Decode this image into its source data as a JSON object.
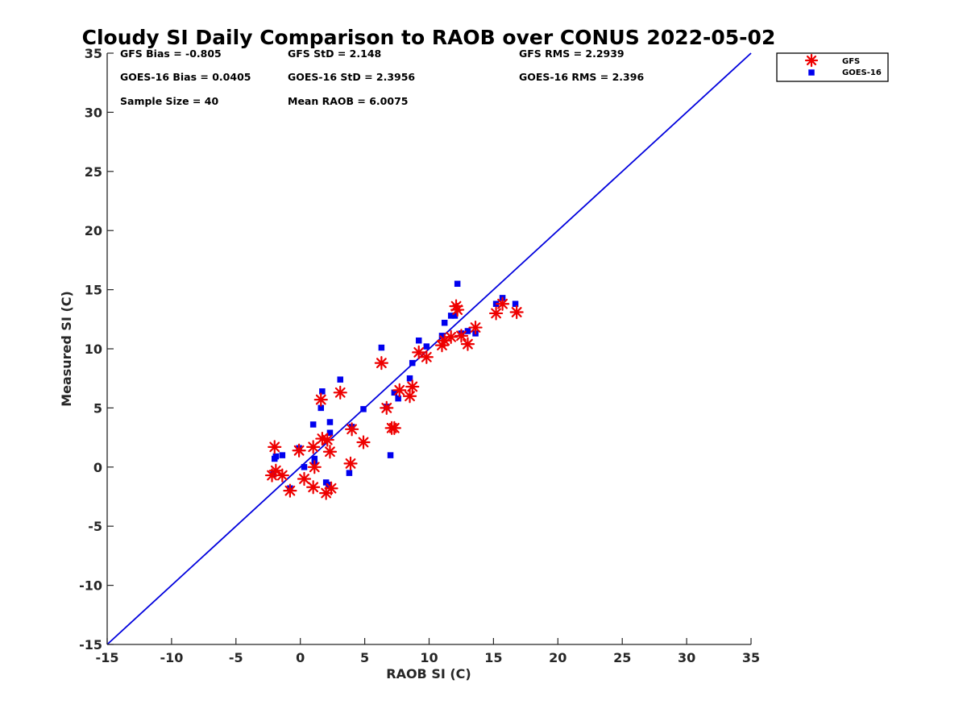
{
  "chart_data": {
    "type": "scatter",
    "title": "Cloudy SI Daily Comparison to RAOB over CONUS 2022-05-02",
    "xlabel": "RAOB SI (C)",
    "ylabel": "Measured SI (C)",
    "xlim": [
      -15,
      35
    ],
    "ylim": [
      -15,
      35
    ],
    "xticks": [
      -15,
      -10,
      -5,
      0,
      5,
      10,
      15,
      20,
      25,
      30,
      35
    ],
    "yticks": [
      -15,
      -10,
      -5,
      0,
      5,
      10,
      15,
      20,
      25,
      30,
      35
    ],
    "grid": false,
    "legend_position": "outside-top-right",
    "reference_line": {
      "x": [
        -15,
        35
      ],
      "y": [
        -15,
        35
      ],
      "color": "#0000dd"
    },
    "stats": [
      "GFS Bias = -0.805",
      "GFS StD = 2.148",
      "GFS RMS = 2.2939",
      "GOES-16 Bias = 0.0405",
      "GOES-16 StD = 2.3956",
      "GOES-16 RMS = 2.396",
      "Sample Size = 40",
      "Mean RAOB = 6.0075"
    ],
    "series": [
      {
        "name": "GFS",
        "marker": "asterisk",
        "color": "#ee0000",
        "x": [
          -2.2,
          -2.0,
          -1.9,
          -1.4,
          -0.8,
          -0.1,
          0.3,
          1.0,
          1.0,
          1.1,
          1.6,
          1.7,
          2.0,
          2.1,
          2.3,
          2.4,
          3.1,
          3.9,
          4.0,
          4.9,
          6.3,
          6.7,
          7.1,
          7.3,
          7.7,
          8.5,
          8.7,
          9.2,
          9.8,
          11.0,
          11.2,
          11.7,
          12.1,
          12.2,
          12.5,
          13.0,
          13.6,
          15.2,
          15.7,
          16.8
        ],
        "y": [
          -0.7,
          1.7,
          -0.3,
          -0.7,
          -2.0,
          1.4,
          -1.0,
          1.7,
          -1.7,
          0.0,
          5.7,
          2.4,
          -2.2,
          2.3,
          1.3,
          -1.8,
          6.3,
          0.3,
          3.2,
          2.1,
          8.8,
          5.0,
          3.3,
          3.3,
          6.5,
          6.0,
          6.8,
          9.7,
          9.3,
          10.3,
          10.7,
          11.0,
          13.6,
          13.3,
          11.1,
          10.4,
          11.8,
          13.0,
          13.8,
          13.1
        ]
      },
      {
        "name": "GOES-16",
        "marker": "square",
        "color": "#0000ee",
        "x": [
          -2.1,
          -2.0,
          -1.9,
          -1.4,
          -0.8,
          -0.1,
          0.3,
          1.0,
          1.1,
          1.1,
          1.6,
          1.7,
          2.0,
          2.2,
          2.3,
          2.3,
          3.1,
          3.8,
          4.0,
          4.9,
          6.3,
          6.7,
          7.0,
          7.3,
          7.6,
          8.5,
          8.7,
          9.2,
          9.8,
          11.0,
          11.2,
          11.7,
          12.0,
          12.2,
          12.5,
          13.0,
          13.6,
          15.2,
          15.7,
          16.7
        ],
        "y": [
          -0.6,
          0.7,
          0.9,
          1.0,
          -1.8,
          1.6,
          0.0,
          3.6,
          0.7,
          0.4,
          5.0,
          6.4,
          -1.3,
          -1.5,
          3.8,
          2.9,
          7.4,
          -0.5,
          3.4,
          4.9,
          10.1,
          5.1,
          1.0,
          6.3,
          5.8,
          7.5,
          8.8,
          10.7,
          10.2,
          11.1,
          12.2,
          12.8,
          12.8,
          15.5,
          11.3,
          11.5,
          11.3,
          13.8,
          14.3,
          13.8
        ]
      }
    ]
  }
}
